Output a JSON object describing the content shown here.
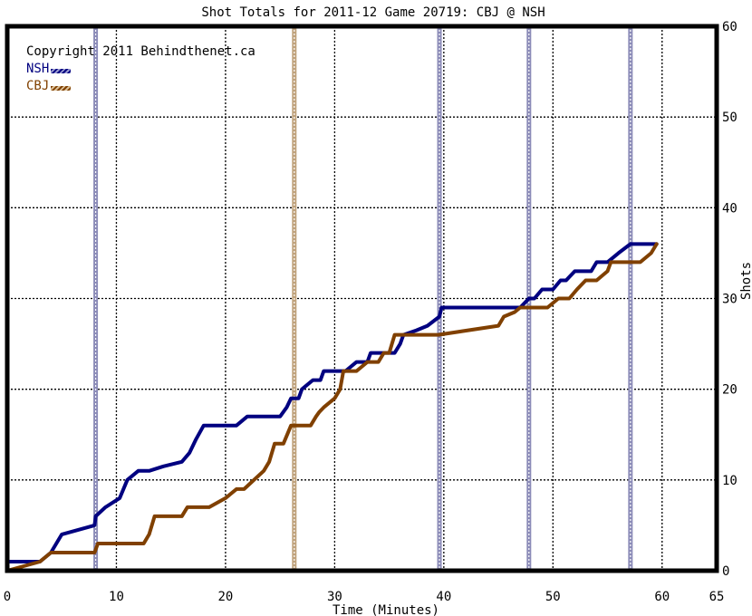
{
  "chart_data": {
    "type": "line",
    "title": "Shot Totals for 2011-12 Game 20719: CBJ @ NSH",
    "xlabel": "Time (Minutes)",
    "ylabel": "Shots",
    "xlim": [
      0,
      65
    ],
    "ylim": [
      0,
      60
    ],
    "x_ticks": [
      0,
      10,
      20,
      30,
      40,
      50,
      60,
      65
    ],
    "y_ticks": [
      0,
      10,
      20,
      30,
      40,
      50,
      60
    ],
    "grid": true,
    "legend_placement": "top-left",
    "copyright": "Copyright 2011 Behindthenet.ca",
    "series": [
      {
        "name": "NSH",
        "color": "#000080",
        "goal_minutes": [
          8.1,
          39.6,
          47.8,
          57.1
        ],
        "points": [
          [
            0,
            1
          ],
          [
            3,
            1
          ],
          [
            4,
            2
          ],
          [
            5,
            4
          ],
          [
            8,
            5
          ],
          [
            8.1,
            6
          ],
          [
            9,
            7
          ],
          [
            10.3,
            8
          ],
          [
            11,
            10
          ],
          [
            12,
            11
          ],
          [
            13,
            11
          ],
          [
            14.3,
            11.5
          ],
          [
            16,
            12
          ],
          [
            16.7,
            13
          ],
          [
            17.3,
            14.5
          ],
          [
            18,
            16
          ],
          [
            21,
            16
          ],
          [
            22,
            17
          ],
          [
            25,
            17
          ],
          [
            25.6,
            18
          ],
          [
            26,
            19
          ],
          [
            26.7,
            19
          ],
          [
            27,
            20
          ],
          [
            28,
            21
          ],
          [
            28.7,
            21
          ],
          [
            29,
            22
          ],
          [
            31,
            22
          ],
          [
            32,
            23
          ],
          [
            33,
            23
          ],
          [
            33.3,
            24
          ],
          [
            35.5,
            24
          ],
          [
            36,
            25
          ],
          [
            36.3,
            26
          ],
          [
            37.5,
            26.5
          ],
          [
            38.5,
            27
          ],
          [
            39.6,
            28
          ],
          [
            39.8,
            29
          ],
          [
            47,
            29
          ],
          [
            47.8,
            30
          ],
          [
            48.3,
            30
          ],
          [
            49,
            31
          ],
          [
            50,
            31
          ],
          [
            50.7,
            32
          ],
          [
            51.2,
            32
          ],
          [
            52,
            33
          ],
          [
            53.5,
            33
          ],
          [
            54,
            34
          ],
          [
            55,
            34
          ],
          [
            56,
            35
          ],
          [
            57.1,
            36
          ],
          [
            59.5,
            36
          ]
        ]
      },
      {
        "name": "CBJ",
        "color": "#804000",
        "goal_minutes": [
          26.3
        ],
        "points": [
          [
            0,
            0
          ],
          [
            3,
            1
          ],
          [
            4,
            2
          ],
          [
            8,
            2
          ],
          [
            8.3,
            3
          ],
          [
            12.5,
            3
          ],
          [
            13,
            4
          ],
          [
            13.5,
            6
          ],
          [
            16,
            6
          ],
          [
            16.5,
            7
          ],
          [
            18.5,
            7
          ],
          [
            20,
            8
          ],
          [
            21,
            9
          ],
          [
            21.7,
            9
          ],
          [
            23.5,
            11
          ],
          [
            24,
            12
          ],
          [
            24.5,
            14
          ],
          [
            25.3,
            14
          ],
          [
            26,
            16
          ],
          [
            26.5,
            16
          ],
          [
            27.8,
            16
          ],
          [
            28.3,
            17
          ],
          [
            28.6,
            17.5
          ],
          [
            29,
            18
          ],
          [
            30,
            19
          ],
          [
            30.5,
            20
          ],
          [
            30.8,
            22
          ],
          [
            32,
            22
          ],
          [
            33,
            23
          ],
          [
            34,
            23
          ],
          [
            34.5,
            24
          ],
          [
            35,
            24
          ],
          [
            35.5,
            26
          ],
          [
            39.5,
            26
          ],
          [
            45,
            27
          ],
          [
            45.5,
            28
          ],
          [
            46.5,
            28.5
          ],
          [
            47,
            29
          ],
          [
            48.5,
            29
          ],
          [
            49.5,
            29
          ],
          [
            50.5,
            30
          ],
          [
            51.5,
            30
          ],
          [
            52.2,
            31
          ],
          [
            53,
            32
          ],
          [
            54,
            32
          ],
          [
            55,
            33
          ],
          [
            55.3,
            34
          ],
          [
            57,
            34
          ],
          [
            58,
            34
          ],
          [
            59,
            35
          ],
          [
            59.5,
            36
          ]
        ]
      }
    ]
  },
  "legend": {
    "nsh_label": "NSH",
    "cbj_label": "CBJ"
  }
}
